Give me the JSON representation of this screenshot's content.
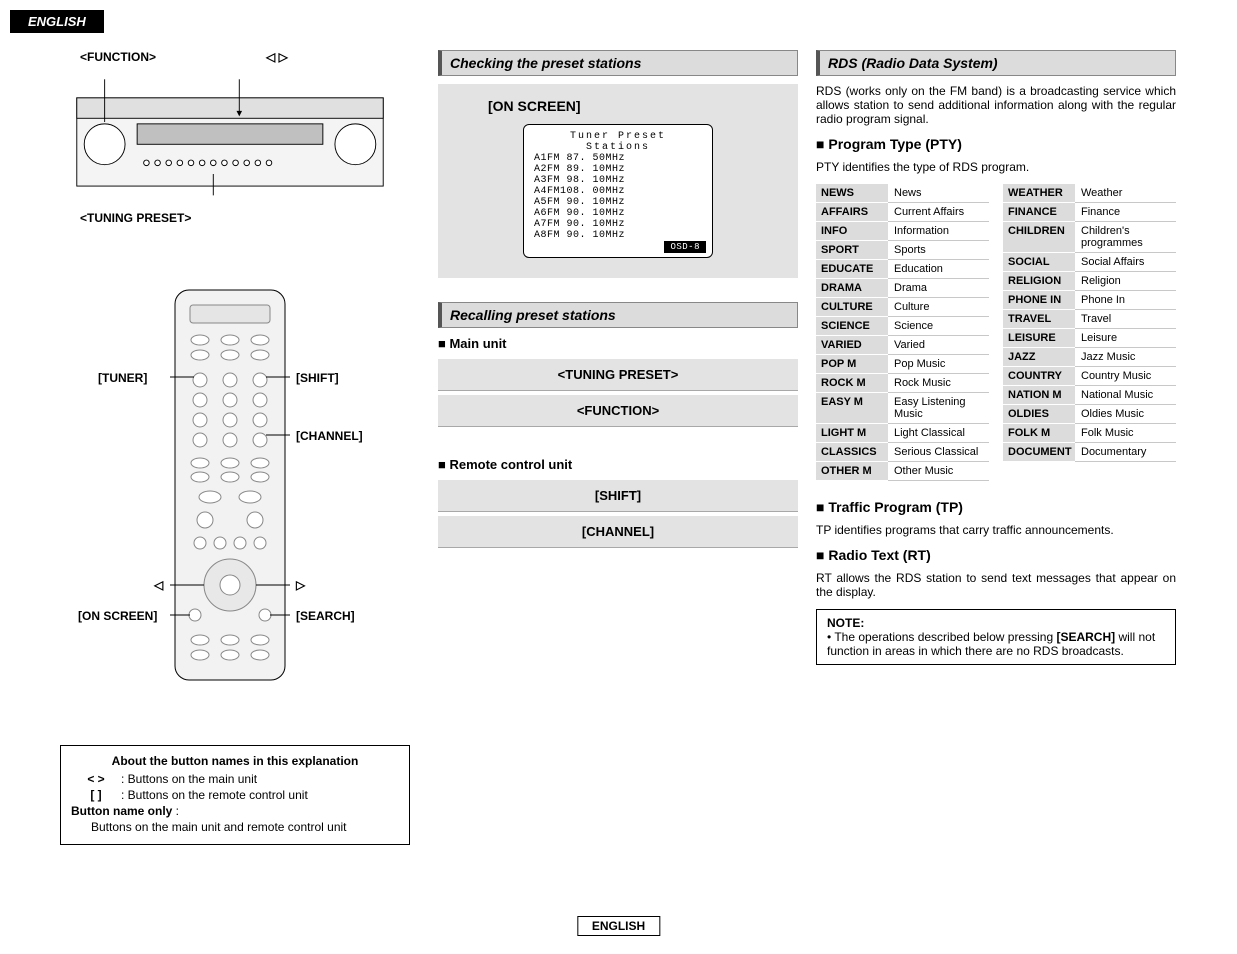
{
  "lang_tab": "ENGLISH",
  "footer_lang": "ENGLISH",
  "col1": {
    "label_function": "<FUNCTION>",
    "label_arrows": "◁ ▷",
    "label_tuning_preset": "<TUNING PRESET>",
    "remote_labels": {
      "tuner": "[TUNER]",
      "shift": "[SHIFT]",
      "channel": "[CHANNEL]",
      "on_screen": "[ON SCREEN]",
      "search": "[SEARCH]",
      "left_arrow": "◁",
      "right_arrow": "▷"
    },
    "about": {
      "title": "About the button names in this explanation",
      "row1_sym": "<    >",
      "row1_txt": ": Buttons on the main unit",
      "row2_sym": "[    ]",
      "row2_txt": ": Buttons on the remote control unit",
      "row3_label": "Button name only",
      "row3_txt": "Buttons on the main unit and remote control unit"
    }
  },
  "col2": {
    "sec1": "Checking the preset stations",
    "onscreen_title": "[ON  SCREEN]",
    "osd_title": "Tuner Preset Stations",
    "osd_lines": [
      "A1FM  87. 50MHz",
      "A2FM  89. 10MHz",
      "A3FM  98. 10MHz",
      "A4FM108. 00MHz",
      "A5FM  90. 10MHz",
      "A6FM  90. 10MHz",
      "A7FM  90. 10MHz",
      "A8FM  90. 10MHz"
    ],
    "osd_badge": "OSD-8",
    "sec2": "Recalling preset stations",
    "main_unit": "Main unit",
    "step_tuning": "<TUNING PRESET>",
    "step_function": "<FUNCTION>",
    "remote_unit": "Remote control unit",
    "step_shift": "[SHIFT]",
    "step_channel": "[CHANNEL]"
  },
  "col3": {
    "rds_header": "RDS (Radio Data System)",
    "rds_para": "RDS (works only on the FM band) is a broadcasting service which allows station to send additional information along with the regular radio program signal.",
    "pty_header": "Program Type (PTY)",
    "pty_para": "PTY identifies the type of RDS program.",
    "pty_left": [
      {
        "c": "NEWS",
        "d": "News"
      },
      {
        "c": "AFFAIRS",
        "d": "Current Affairs"
      },
      {
        "c": "INFO",
        "d": "Information"
      },
      {
        "c": "SPORT",
        "d": "Sports"
      },
      {
        "c": "EDUCATE",
        "d": "Education"
      },
      {
        "c": "DRAMA",
        "d": "Drama"
      },
      {
        "c": "CULTURE",
        "d": "Culture"
      },
      {
        "c": "SCIENCE",
        "d": "Science"
      },
      {
        "c": "VARIED",
        "d": "Varied"
      },
      {
        "c": "POP M",
        "d": "Pop Music"
      },
      {
        "c": "ROCK M",
        "d": "Rock Music"
      },
      {
        "c": "EASY M",
        "d": "Easy Listening Music"
      },
      {
        "c": "LIGHT M",
        "d": "Light Classical"
      },
      {
        "c": "CLASSICS",
        "d": "Serious Classical"
      },
      {
        "c": "OTHER M",
        "d": "Other Music"
      }
    ],
    "pty_right": [
      {
        "c": "WEATHER",
        "d": "Weather"
      },
      {
        "c": "FINANCE",
        "d": "Finance"
      },
      {
        "c": "CHILDREN",
        "d": "Children's programmes"
      },
      {
        "c": "SOCIAL",
        "d": "Social Affairs"
      },
      {
        "c": "RELIGION",
        "d": "Religion"
      },
      {
        "c": "PHONE IN",
        "d": "Phone In"
      },
      {
        "c": "TRAVEL",
        "d": "Travel"
      },
      {
        "c": "LEISURE",
        "d": "Leisure"
      },
      {
        "c": "JAZZ",
        "d": "Jazz Music"
      },
      {
        "c": "COUNTRY",
        "d": "Country Music"
      },
      {
        "c": "NATION M",
        "d": "National Music"
      },
      {
        "c": "OLDIES",
        "d": "Oldies Music"
      },
      {
        "c": "FOLK M",
        "d": "Folk Music"
      },
      {
        "c": "DOCUMENT",
        "d": "Documentary"
      }
    ],
    "tp_header": "Traffic Program (TP)",
    "tp_para": "TP identifies programs that carry traffic announcements.",
    "rt_header": "Radio Text (RT)",
    "rt_para": "RT allows the RDS station to send text messages that appear on the display.",
    "note_label": "NOTE:",
    "note_bullet": "• ",
    "note_txt1": "The operations described below pressing ",
    "note_bold": "[SEARCH]",
    "note_txt2": " will not function in areas in which there are no RDS broadcasts."
  }
}
